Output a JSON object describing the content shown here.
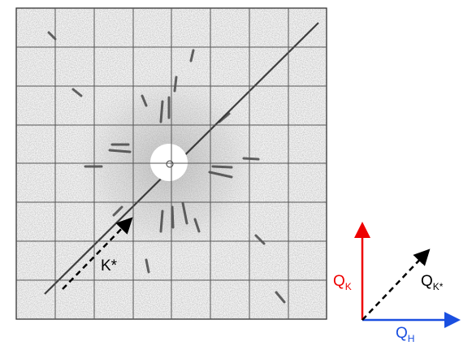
{
  "labels": {
    "k_star": "K*"
  },
  "vectors": {
    "q_k": {
      "symbol": "Q",
      "subscript": "K"
    },
    "q_k_star": {
      "symbol": "Q",
      "subscript": "K*"
    },
    "q_h": {
      "symbol": "Q",
      "subscript": "H"
    }
  }
}
